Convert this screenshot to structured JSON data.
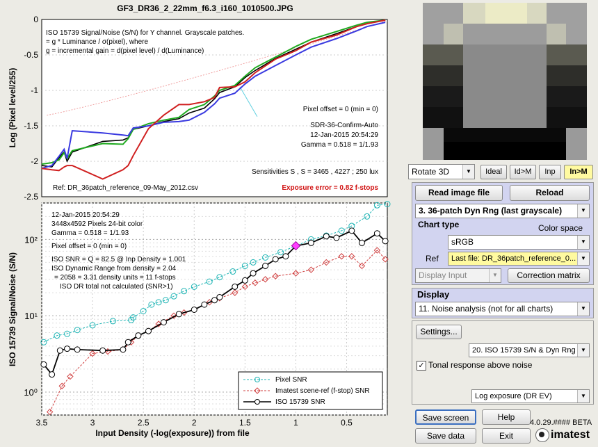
{
  "top_plot": {
    "title": "GF3_DR36_2_22mm_f6.3_i160_1010500.JPG",
    "ylabel": "Log (Pixel level/255)",
    "yticks": [
      "0",
      "-0.5",
      "-1",
      "-1.5",
      "-2",
      "-2.5"
    ],
    "annot_line1": "ISO 15739 Signal/Noise (S/N) for Y channel.  Grayscale patches.",
    "annot_line2": "= g  * Luminance / σ(pixel),  where",
    "annot_line3": "g  = incremental gain = d(pixel level) / d(Luminance)",
    "pixel_offset": "Pixel offset = 0  (min = 0)",
    "sdr": "SDR-36-Confirm-Auto",
    "date": "12-Jan-2015 20:54:29",
    "gamma": "Gamma = 0.518 = 1/1.93",
    "sensitivities": "Sensitivities S   , S     = 3465 ,  4227 ;  250 lux",
    "ref": "Ref: DR_36patch_reference_09-May_2012.csv",
    "exposure_error": "Exposure error = 0.82 f-stops"
  },
  "bottom_plot": {
    "ylabel": "ISO 15739 Signal/Noise (S/N)",
    "xlabel": "Input Density (-log(exposure))   from file",
    "xticks": [
      "3.5",
      "3",
      "2.5",
      "2",
      "1.5",
      "1",
      "0.5"
    ],
    "yticks": [
      "10²",
      "10¹",
      "10⁰"
    ],
    "info": [
      "12-Jan-2015 20:54:29",
      "3448x4592 Pixels   24-bit color",
      "Gamma = 0.518 = 1/1.93",
      "",
      "Pixel offset = 0  (min = 0)",
      "",
      "ISO SNR = Q = 82.5  @ Inp Density = 1.001",
      "ISO Dynamic Range from density = 2.04",
      "= 2058 = 3.31 density units = 11 f-stops",
      "ISO DR total not calculated (SNR>1)"
    ],
    "legend": [
      "Pixel SNR",
      "Imatest scene-ref (f-stop) SNR",
      "ISO 15739 SNR"
    ]
  },
  "chart_data": [
    {
      "type": "line",
      "title": "GF3_DR36_2_22mm_f6.3_i160_1010500.JPG",
      "xlabel": "",
      "ylabel": "Log (Pixel level/255)",
      "x": [
        3.5,
        3.4,
        3.33,
        3.28,
        3.25,
        3.2,
        2.9,
        2.7,
        2.65,
        2.6,
        2.45,
        2.3,
        2.15,
        2.05,
        1.9,
        1.8,
        1.75,
        1.6,
        1.5,
        1.4,
        1.2,
        1.0,
        0.85,
        0.6,
        0.4,
        0.3,
        0.12
      ],
      "ylim": [
        -2.5,
        0
      ],
      "series": [
        {
          "color": "#000000",
          "values": [
            -2.06,
            -2.08,
            -1.95,
            -1.87,
            -2.0,
            -1.87,
            -1.72,
            -1.7,
            -1.67,
            -1.55,
            -1.5,
            -1.44,
            -1.4,
            -1.32,
            -1.25,
            -1.12,
            -1.03,
            -0.95,
            -0.82,
            -0.72,
            -0.55,
            -0.42,
            -0.32,
            -0.2,
            -0.1,
            -0.06,
            -0.01
          ]
        },
        {
          "color": "#1faa1f",
          "values": [
            -2.04,
            -2.02,
            -1.98,
            -1.88,
            -1.96,
            -1.85,
            -1.75,
            -1.76,
            -1.68,
            -1.55,
            -1.47,
            -1.42,
            -1.38,
            -1.27,
            -1.2,
            -1.08,
            -1.0,
            -0.93,
            -0.8,
            -0.68,
            -0.53,
            -0.38,
            -0.28,
            -0.17,
            -0.08,
            -0.04,
            -0.01
          ]
        },
        {
          "color": "#3a3ae0",
          "values": [
            -2.1,
            -2.06,
            -1.93,
            -1.83,
            -1.96,
            -1.57,
            -1.6,
            -1.63,
            -1.64,
            -1.53,
            -1.5,
            -1.45,
            -1.44,
            -1.42,
            -1.31,
            -1.19,
            -1.11,
            -1.04,
            -0.91,
            -0.8,
            -0.65,
            -0.5,
            -0.39,
            -0.27,
            -0.16,
            -0.1,
            -0.04
          ]
        },
        {
          "color": "#d02020",
          "values": [
            -2.1,
            -2.12,
            -2.13,
            -2.08,
            -2.06,
            -2.06,
            -2.25,
            -2.12,
            -2.06,
            -1.92,
            -1.54,
            -1.35,
            -1.2,
            -1.2,
            -1.16,
            -1.1,
            -0.96,
            -0.95,
            -0.88,
            -0.75,
            -0.56,
            -0.44,
            -0.32,
            -0.22,
            -0.1,
            -0.06,
            -0.01
          ]
        }
      ]
    },
    {
      "type": "line",
      "title": "",
      "xlabel": "Input Density (-log(exposure))   from file",
      "ylabel": "ISO 15739 Signal/Noise (S/N)",
      "log_y": true,
      "xlim": [
        3.5,
        0.1
      ],
      "ylim": [
        0.5,
        300
      ],
      "series": [
        {
          "name": "Pixel SNR",
          "color": "#20b5b5",
          "x": [
            3.48,
            3.35,
            3.25,
            3.15,
            3.0,
            2.8,
            2.62,
            2.6,
            2.5,
            2.42,
            2.35,
            2.28,
            2.2,
            2.1,
            2.0,
            1.85,
            1.75,
            1.62,
            1.5,
            1.42,
            1.3,
            1.15,
            1.0,
            0.85,
            0.7,
            0.55,
            0.45,
            0.3,
            0.2,
            0.1
          ],
          "values": [
            4.5,
            5.5,
            5.8,
            6.5,
            7.5,
            8.5,
            8.8,
            9.5,
            11.5,
            14,
            15,
            16,
            18,
            21,
            24,
            28,
            32,
            38,
            45,
            50,
            58,
            68,
            82,
            100,
            112,
            130,
            150,
            200,
            280,
            290
          ]
        },
        {
          "name": "Imatest scene-ref (f-stop) SNR",
          "color": "#d04040",
          "x": [
            3.42,
            3.3,
            3.22,
            3.0,
            2.85,
            2.7,
            2.62,
            2.55,
            2.45,
            2.35,
            2.2,
            2.1,
            2.0,
            1.85,
            1.75,
            1.6,
            1.5,
            1.4,
            1.3,
            1.2,
            1.0,
            0.85,
            0.7,
            0.55,
            0.45,
            0.35,
            0.2,
            0.12
          ],
          "values": [
            0.55,
            1.2,
            1.6,
            3.2,
            3.4,
            3.6,
            4.5,
            5.5,
            6.3,
            7.8,
            10,
            11,
            12,
            15,
            17,
            20,
            24,
            27,
            30,
            33,
            36,
            40,
            50,
            60,
            60,
            45,
            72,
            55
          ]
        },
        {
          "name": "ISO 15739 SNR",
          "color": "#000000",
          "x": [
            3.48,
            3.4,
            3.32,
            3.25,
            3.15,
            2.9,
            2.7,
            2.65,
            2.55,
            2.45,
            2.3,
            2.15,
            2.0,
            1.9,
            1.8,
            1.75,
            1.6,
            1.5,
            1.42,
            1.3,
            1.2,
            1.1,
            1.0,
            0.85,
            0.7,
            0.6,
            0.45,
            0.35,
            0.2,
            0.12
          ],
          "values": [
            2.3,
            1.7,
            3.5,
            3.7,
            3.6,
            3.5,
            3.6,
            4.5,
            5.5,
            6.3,
            8.2,
            10.5,
            12,
            14,
            16,
            17.5,
            24,
            29,
            36,
            45,
            55,
            60,
            82,
            90,
            110,
            105,
            130,
            90,
            120,
            95
          ]
        }
      ]
    }
  ],
  "right_panel": {
    "thumbnail_icon": "gray-patch-closeup",
    "rotate": "Rotate 3D",
    "mode_buttons": [
      "Ideal",
      "Id>M",
      "Inp",
      "In>M"
    ],
    "read_image": "Read image file",
    "reload": "Reload",
    "chart_select": "3.  36-patch Dyn Rng  (last grayscale)",
    "chart_type_label": "Chart type",
    "color_space_label": "Color space",
    "color_space": "sRGB",
    "ref_label": "Ref",
    "ref_value": "Last file: DR_36patch_reference_0...",
    "display_input": "Display Input",
    "correction_matrix": "Correction matrix",
    "display_label": "Display",
    "display_select": "11. Noise analysis (not for all charts)",
    "settings": "Settings...",
    "plot_select": "20. ISO 15739 S/N & Dyn Rng",
    "tonal_checkbox": "Tonal response above noise",
    "tonal_checked": true,
    "exposure_select": "Log exposure (DR EV)",
    "save_screen": "Save screen",
    "help": "Help",
    "version": "4.0.29.#### BETA",
    "save_data": "Save data",
    "exit": "Exit",
    "logo": "imatest",
    "accent": "#fffaa0"
  }
}
